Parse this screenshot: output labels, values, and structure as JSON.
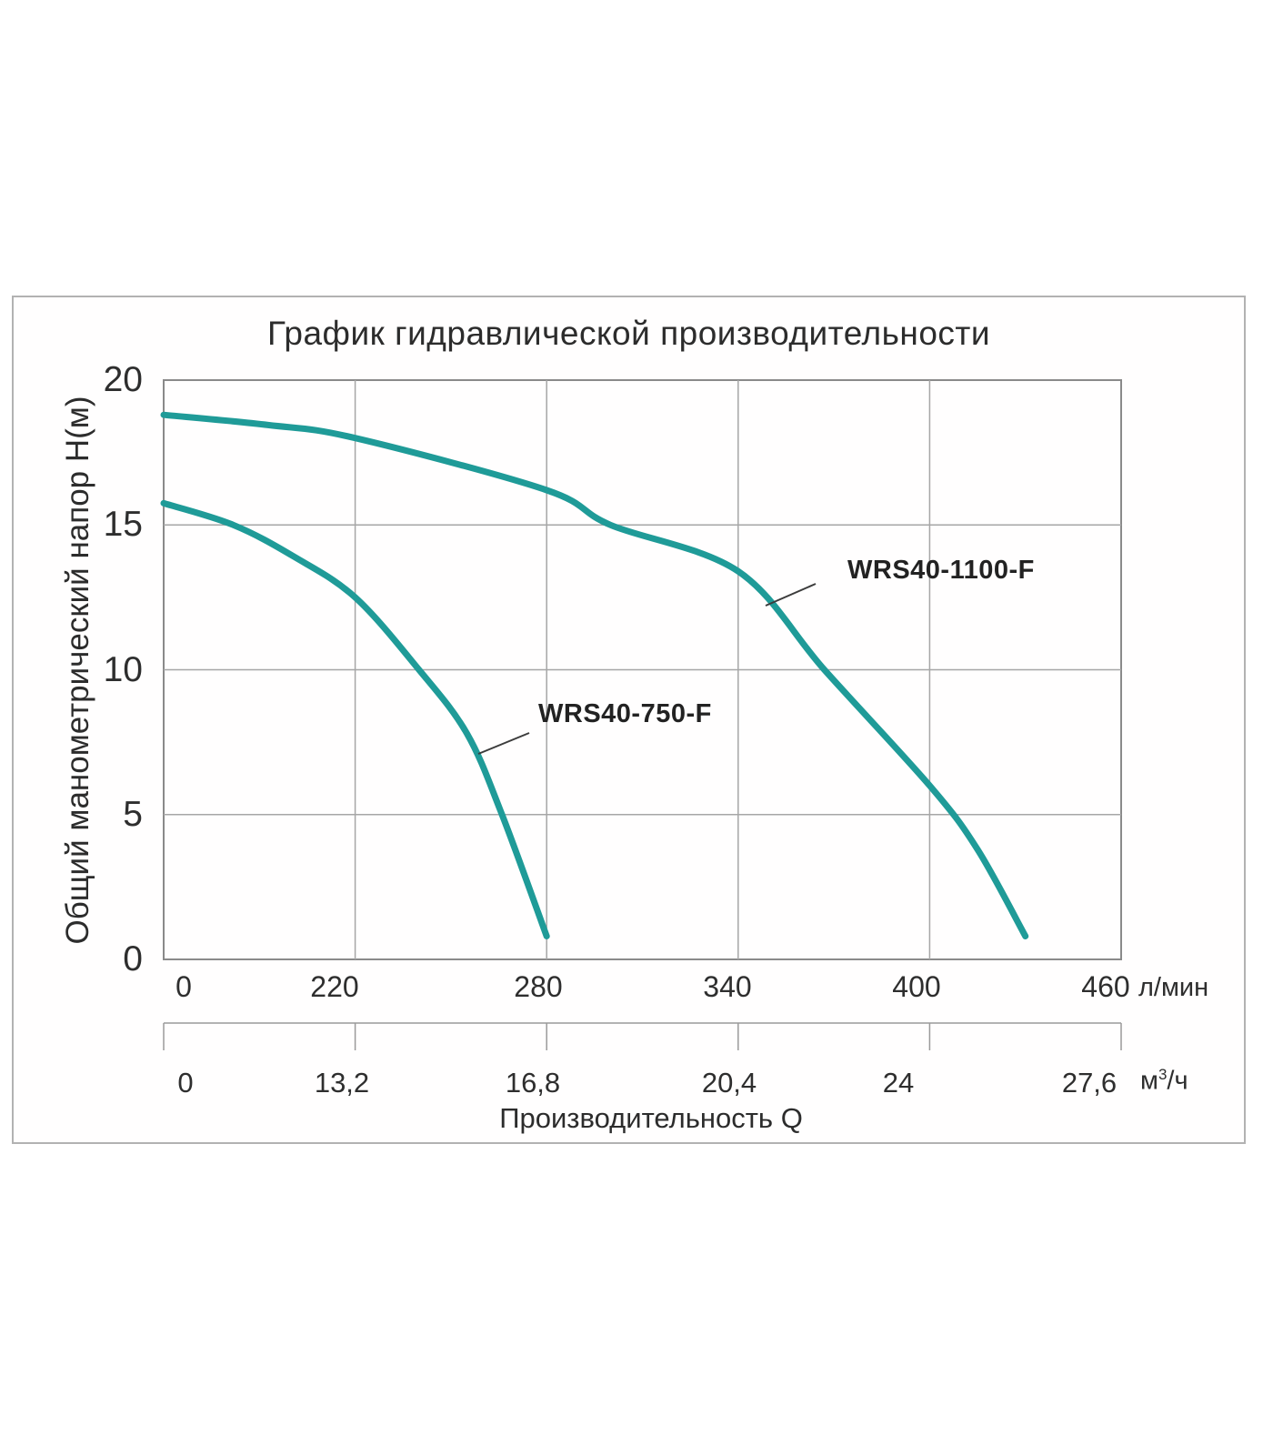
{
  "title": "График гидравлической производительности",
  "y_axis": {
    "title": "Общий манометрический напор Н(м)",
    "ticks": [
      "20",
      "15",
      "10",
      "5",
      "0"
    ]
  },
  "x_axis": {
    "title": "Производительность Q",
    "lmin": {
      "ticks": [
        "0",
        "220",
        "280",
        "340",
        "400",
        "460"
      ],
      "unit": "л/мин"
    },
    "m3h": {
      "ticks": [
        "0",
        "13,2",
        "16,8",
        "20,4",
        "24",
        "27,6"
      ],
      "unit_base": "м",
      "unit_sup": "3",
      "unit_rest": "/ч"
    }
  },
  "curves": [
    {
      "label": "WRS40-1100-F"
    },
    {
      "label": "WRS40-750-F"
    }
  ],
  "colors": {
    "curve": "#1f9b98",
    "grid": "#a6a6a6",
    "plot_border": "#8a8a8a",
    "axis2": "#9a9a9a",
    "panel_border": "#b2b2b2",
    "text": "#303030",
    "leader": "#3c3c3c"
  },
  "chart_data": {
    "type": "line",
    "title": "График гидравлической производительности",
    "xlabel": "Производительность Q",
    "ylabel": "Общий манометрический напор Н(м)",
    "x_unit_primary": "л/мин",
    "x_unit_secondary": "м³/ч",
    "x_ticks_lmin": [
      0,
      220,
      280,
      340,
      400,
      460
    ],
    "x_ticks_m3h": [
      0,
      13.2,
      16.8,
      20.4,
      24,
      27.6
    ],
    "x_scale_note": "tick marks equally spaced on axis (non-linear flow scale)",
    "ylim": [
      0,
      20
    ],
    "y_ticks": [
      0,
      5,
      10,
      15,
      20
    ],
    "grid": true,
    "legend_position": "inline-labels-with-leader-lines",
    "series": [
      {
        "name": "WRS40-1100-F",
        "x_lmin": [
          0,
          120,
          220,
          280,
          300,
          340,
          367,
          400,
          415,
          430
        ],
        "y_head_m": [
          18.8,
          18.45,
          18.0,
          16.2,
          15.0,
          13.4,
          10.0,
          6.0,
          3.8,
          0.8
        ]
      },
      {
        "name": "WRS40-750-F",
        "x_lmin": [
          0,
          80,
          150,
          220,
          240,
          255,
          266,
          280
        ],
        "y_head_m": [
          15.75,
          15.0,
          13.9,
          12.5,
          10.0,
          7.8,
          5.0,
          0.8
        ]
      }
    ]
  }
}
